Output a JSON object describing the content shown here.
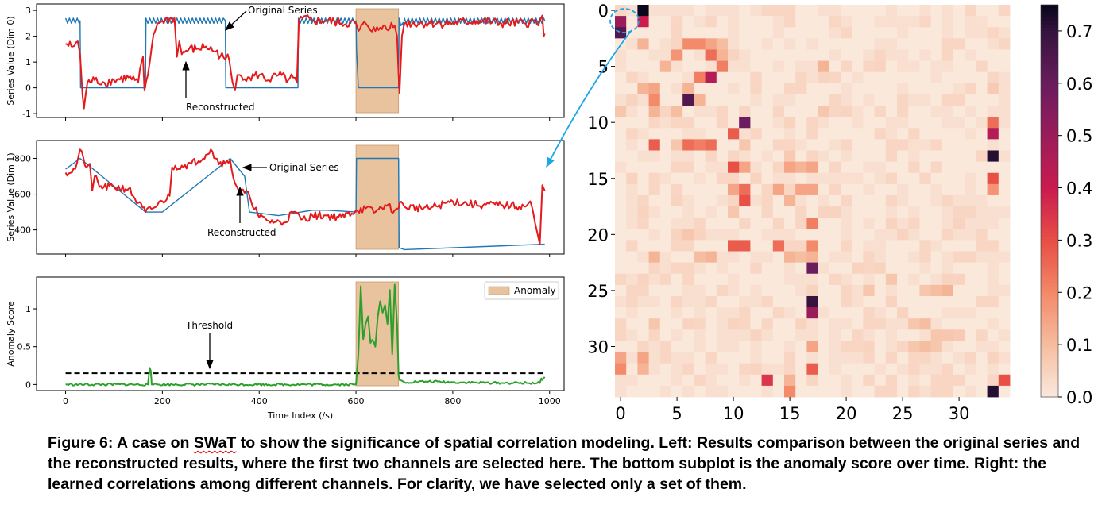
{
  "caption": {
    "label": "Figure 6:",
    "pre": " A case on ",
    "dataset": "SWaT",
    "post": " to show the significance of spatial correlation modeling. Left: Results comparison between the original series and the reconstructed results, where the first two channels are selected here. The bottom subplot is the anomaly score over time. Right: the learned correlations among different channels. For clarity, we have selected only a set of them."
  },
  "colors": {
    "original": "#1f77b4",
    "reconstructed": "#e41a1c",
    "score": "#2ca02c",
    "anomaly": "#e8c39e",
    "arrow": "#1aa7e8"
  },
  "chart_data": [
    {
      "type": "line",
      "ylabel": "Series Value (Dim 0)",
      "xlim": [
        -60,
        1030
      ],
      "ylim": [
        -1.15,
        3.25
      ],
      "yticks": [
        -1,
        0,
        1,
        2,
        3
      ],
      "anomaly_range": [
        600,
        688
      ],
      "series": [
        {
          "role": "original",
          "x": [
            0,
            30,
            31,
            165,
            166,
            330,
            331,
            480,
            481,
            600,
            601,
            605,
            688,
            689,
            698,
            700,
            990
          ],
          "y": [
            2.6,
            2.6,
            0,
            0,
            2.6,
            2.6,
            0,
            0,
            2.6,
            2.6,
            1.5,
            0,
            0,
            2.6,
            2.4,
            2.6,
            2.6
          ]
        },
        {
          "role": "reconstructed",
          "x": [
            0,
            15,
            25,
            30,
            35,
            38,
            45,
            60,
            80,
            100,
            130,
            150,
            160,
            163,
            170,
            178,
            185,
            190,
            200,
            225,
            230,
            235,
            240,
            255,
            270,
            290,
            310,
            330,
            335,
            345,
            350,
            355,
            360,
            380,
            400,
            420,
            440,
            460,
            470,
            478,
            482,
            490,
            510,
            540,
            570,
            600,
            605,
            620,
            640,
            660,
            680,
            685,
            688,
            690,
            695,
            700,
            750,
            800,
            850,
            900,
            950,
            980,
            985,
            988,
            990
          ],
          "y": [
            1.7,
            1.6,
            1.8,
            1.3,
            -0.3,
            -0.8,
            0.2,
            0.3,
            0.2,
            0.3,
            0.4,
            0.2,
            1.2,
            -0.1,
            0.5,
            1.6,
            2.2,
            2.5,
            2.6,
            2.7,
            1.2,
            1.8,
            1.3,
            1.5,
            1.5,
            1.6,
            1.4,
            1.1,
            1.3,
            0.2,
            -0.1,
            0.5,
            0.5,
            0.4,
            0.5,
            0.3,
            0.5,
            0.3,
            0.4,
            0.2,
            2.6,
            2.7,
            2.6,
            2.6,
            2.5,
            2.5,
            2.2,
            2.5,
            2.2,
            2.4,
            2.4,
            2.0,
            0.5,
            -0.2,
            2.0,
            2.5,
            2.5,
            2.5,
            2.6,
            2.5,
            2.5,
            2.6,
            2.8,
            2.0,
            2.1
          ]
        }
      ],
      "annotations": [
        {
          "text": "Original Series",
          "x": 330,
          "y": 2.6
        },
        {
          "text": "Reconstructed",
          "x": 250,
          "y": 1.5
        }
      ]
    },
    {
      "type": "line",
      "ylabel": "Series Value (Dim 1)",
      "xlim": [
        -60,
        1030
      ],
      "ylim": [
        265,
        900
      ],
      "yticks": [
        400,
        600,
        800
      ],
      "anomaly_range": [
        600,
        688
      ],
      "series": [
        {
          "role": "original",
          "x": [
            0,
            30,
            165,
            200,
            340,
            370,
            380,
            440,
            510,
            540,
            600,
            601,
            688,
            689,
            700,
            990
          ],
          "y": [
            740,
            800,
            500,
            500,
            800,
            700,
            500,
            480,
            510,
            510,
            500,
            800,
            800,
            300,
            290,
            320
          ]
        },
        {
          "role": "reconstructed",
          "x": [
            0,
            20,
            30,
            40,
            50,
            55,
            60,
            70,
            100,
            130,
            150,
            165,
            180,
            200,
            215,
            220,
            240,
            260,
            290,
            300,
            310,
            320,
            330,
            340,
            350,
            360,
            380,
            400,
            420,
            450,
            470,
            490,
            510,
            540,
            570,
            600,
            620,
            640,
            660,
            680,
            688,
            690,
            700,
            750,
            800,
            850,
            900,
            950,
            960,
            970,
            975,
            980,
            985,
            990
          ],
          "y": [
            720,
            740,
            850,
            760,
            770,
            620,
            700,
            640,
            640,
            630,
            550,
            500,
            520,
            560,
            590,
            750,
            760,
            770,
            820,
            850,
            800,
            780,
            770,
            790,
            660,
            620,
            590,
            470,
            450,
            440,
            500,
            460,
            480,
            480,
            470,
            510,
            520,
            500,
            540,
            510,
            520,
            550,
            530,
            520,
            560,
            540,
            540,
            530,
            560,
            440,
            380,
            320,
            650,
            620
          ]
        }
      ],
      "annotations": [
        {
          "text": "Original Series",
          "x": 370,
          "y": 800
        },
        {
          "text": "Reconstructed",
          "x": 360,
          "y": 360
        }
      ]
    },
    {
      "type": "line",
      "ylabel": "Anomaly Score",
      "xlabel": "Time Index (/s)",
      "xlim": [
        -60,
        1030
      ],
      "ylim": [
        -0.08,
        1.42
      ],
      "xticks": [
        0,
        200,
        400,
        600,
        800,
        1000
      ],
      "yticks": [
        0.0,
        0.5,
        1.0
      ],
      "anomaly_range": [
        600,
        688
      ],
      "threshold": 0.15,
      "legend": {
        "entries": [
          "Anomaly"
        ],
        "placement": "top-right"
      },
      "series": [
        {
          "role": "score",
          "x": [
            0,
            170,
            174,
            176,
            178,
            182,
            600,
            605,
            610,
            615,
            620,
            625,
            630,
            640,
            645,
            650,
            655,
            660,
            665,
            670,
            675,
            680,
            685,
            688,
            690,
            695,
            700,
            750,
            800,
            900,
            980,
            983,
            985,
            990
          ],
          "y": [
            0.0,
            0.0,
            0.22,
            0.18,
            0.0,
            0.0,
            0.0,
            0.4,
            1.3,
            0.6,
            0.8,
            0.9,
            0.55,
            0.5,
            0.9,
            1.1,
            0.95,
            1.05,
            0.8,
            1.25,
            0.4,
            1.32,
            0.8,
            0.12,
            0.06,
            0.05,
            0.03,
            0.04,
            0.03,
            0.02,
            0.02,
            0.08,
            0.06,
            0.1
          ]
        }
      ],
      "annotations": [
        {
          "text": "Threshold",
          "x": 300,
          "y": 0.15
        }
      ]
    },
    {
      "type": "heatmap",
      "size": 35,
      "xticks": [
        0,
        5,
        10,
        15,
        20,
        25,
        30
      ],
      "yticks": [
        0,
        5,
        10,
        15,
        20,
        25,
        30
      ],
      "zlim": [
        0,
        0.75
      ],
      "colorbar_ticks": [
        0.0,
        0.1,
        0.2,
        0.3,
        0.4,
        0.5,
        0.6,
        0.7
      ],
      "highlighted_cell": [
        0,
        1
      ],
      "cells": [
        [
          0,
          2,
          0.75
        ],
        [
          1,
          0,
          0.5
        ],
        [
          1,
          2,
          0.4
        ],
        [
          2,
          0,
          0.65
        ],
        [
          3,
          2,
          0.12
        ],
        [
          3,
          6,
          0.2
        ],
        [
          3,
          7,
          0.2
        ],
        [
          3,
          8,
          0.15
        ],
        [
          3,
          9,
          0.1
        ],
        [
          4,
          5,
          0.18
        ],
        [
          4,
          8,
          0.25
        ],
        [
          4,
          9,
          0.12
        ],
        [
          4,
          10,
          0.05
        ],
        [
          5,
          4,
          0.12
        ],
        [
          5,
          9,
          0.22
        ],
        [
          5,
          18,
          0.12
        ],
        [
          5,
          23,
          0.05
        ],
        [
          6,
          7,
          0.22
        ],
        [
          6,
          8,
          0.45
        ],
        [
          6,
          18,
          0.05
        ],
        [
          7,
          2,
          0.12
        ],
        [
          7,
          3,
          0.15
        ],
        [
          7,
          6,
          0.12
        ],
        [
          7,
          33,
          0.07
        ],
        [
          8,
          3,
          0.2
        ],
        [
          8,
          6,
          0.65
        ],
        [
          8,
          7,
          0.12
        ],
        [
          8,
          1,
          0.05
        ],
        [
          9,
          0,
          0.08
        ],
        [
          9,
          3,
          0.12
        ],
        [
          9,
          5,
          0.1
        ],
        [
          9,
          18,
          0.08
        ],
        [
          9,
          20,
          0.05
        ],
        [
          10,
          11,
          0.6
        ],
        [
          10,
          33,
          0.25
        ],
        [
          10,
          15,
          0.05
        ],
        [
          11,
          10,
          0.28
        ],
        [
          11,
          33,
          0.45
        ],
        [
          12,
          3,
          0.28
        ],
        [
          12,
          6,
          0.25
        ],
        [
          12,
          7,
          0.22
        ],
        [
          12,
          8,
          0.25
        ],
        [
          12,
          5,
          0.08
        ],
        [
          12,
          11,
          0.08
        ],
        [
          13,
          33,
          0.72
        ],
        [
          13,
          15,
          0.07
        ],
        [
          14,
          10,
          0.3
        ],
        [
          14,
          11,
          0.15
        ],
        [
          14,
          15,
          0.15
        ],
        [
          14,
          16,
          0.12
        ],
        [
          14,
          17,
          0.15
        ],
        [
          15,
          33,
          0.3
        ],
        [
          15,
          1,
          0.05
        ],
        [
          15,
          12,
          0.05
        ],
        [
          16,
          10,
          0.15
        ],
        [
          16,
          11,
          0.25
        ],
        [
          16,
          14,
          0.15
        ],
        [
          16,
          16,
          0.15
        ],
        [
          16,
          17,
          0.15
        ],
        [
          16,
          33,
          0.18
        ],
        [
          17,
          11,
          0.3
        ],
        [
          17,
          15,
          0.12
        ],
        [
          17,
          5,
          0.05
        ],
        [
          18,
          10,
          0.08
        ],
        [
          18,
          2,
          0.05
        ],
        [
          18,
          18,
          0.05
        ],
        [
          18,
          19,
          0.05
        ],
        [
          19,
          17,
          0.22
        ],
        [
          19,
          24,
          0.05
        ],
        [
          19,
          30,
          0.05
        ],
        [
          20,
          5,
          0.05
        ],
        [
          20,
          6,
          0.08
        ],
        [
          20,
          7,
          0.05
        ],
        [
          20,
          25,
          0.05
        ],
        [
          21,
          10,
          0.28
        ],
        [
          21,
          11,
          0.28
        ],
        [
          21,
          14,
          0.25
        ],
        [
          21,
          17,
          0.2
        ],
        [
          22,
          17,
          0.12
        ],
        [
          22,
          3,
          0.12
        ],
        [
          22,
          7,
          0.1
        ],
        [
          22,
          8,
          0.12
        ],
        [
          22,
          15,
          0.12
        ],
        [
          22,
          16,
          0.1
        ],
        [
          23,
          17,
          0.6
        ],
        [
          23,
          21,
          0.05
        ],
        [
          23,
          23,
          0.05
        ],
        [
          24,
          2,
          0.05
        ],
        [
          24,
          24,
          0.08
        ],
        [
          24,
          29,
          0.05
        ],
        [
          24,
          30,
          0.05
        ],
        [
          25,
          17,
          0.05
        ],
        [
          25,
          22,
          0.08
        ],
        [
          25,
          27,
          0.08
        ],
        [
          25,
          28,
          0.1
        ],
        [
          25,
          29,
          0.12
        ],
        [
          26,
          17,
          0.7
        ],
        [
          26,
          24,
          0.05
        ],
        [
          27,
          17,
          0.5
        ],
        [
          27,
          25,
          0.05
        ],
        [
          28,
          3,
          0.08
        ],
        [
          28,
          6,
          0.05
        ],
        [
          28,
          10,
          0.05
        ],
        [
          28,
          16,
          0.05
        ],
        [
          28,
          26,
          0.08
        ],
        [
          28,
          27,
          0.1
        ],
        [
          29,
          12,
          0.05
        ],
        [
          29,
          28,
          0.08
        ],
        [
          29,
          29,
          0.08
        ],
        [
          29,
          30,
          0.07
        ],
        [
          30,
          17,
          0.15
        ],
        [
          30,
          22,
          0.05
        ],
        [
          30,
          26,
          0.08
        ],
        [
          30,
          27,
          0.1
        ],
        [
          30,
          28,
          0.08
        ],
        [
          31,
          0,
          0.15
        ],
        [
          31,
          2,
          0.15
        ],
        [
          31,
          33,
          0.05
        ],
        [
          32,
          0,
          0.2
        ],
        [
          32,
          2,
          0.12
        ],
        [
          32,
          17,
          0.28
        ],
        [
          32,
          12,
          0.05
        ],
        [
          33,
          13,
          0.35
        ],
        [
          33,
          15,
          0.12
        ],
        [
          33,
          34,
          0.3
        ],
        [
          34,
          15,
          0.2
        ],
        [
          34,
          33,
          0.72
        ]
      ]
    }
  ]
}
